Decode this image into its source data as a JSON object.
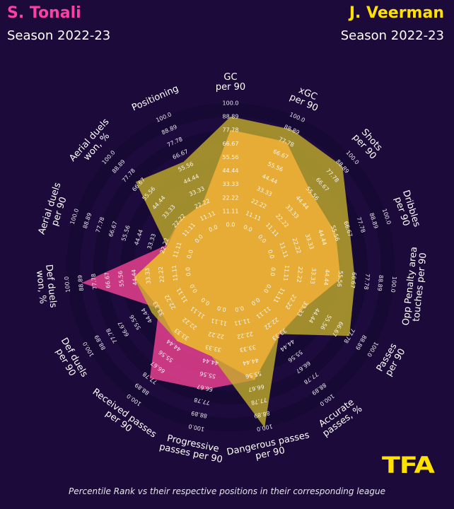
{
  "players": [
    {
      "name": "S. Tonali",
      "season": "Season 2022-23",
      "color": "#ff3fa4"
    },
    {
      "name": "J. Veerman",
      "season": "Season 2022-23",
      "color": "#ffe100"
    }
  ],
  "logo": {
    "text": "TFA",
    "color": "#ffe100"
  },
  "footnote": "Percentile Rank vs their respective positions in their corresponding league",
  "chart_data": {
    "type": "radar",
    "categories": [
      "GC\nper 90",
      "xGC\nper 90",
      "Shots\nper 90",
      "Dribbles\nper 90",
      "Opp Penalty area\ntouches per 90",
      "Passes\nper 90",
      "Accurate\npasses, %",
      "Dangerous passes\nper 90",
      "Progressive\npasses per 90",
      "Received passes\nper 90",
      "Def duels\nper 90",
      "Def duels\nwon, %",
      "Aerial duels\nper 90",
      "Aerial duels\nwon, %",
      "Positioning"
    ],
    "rings": [
      "0.0",
      "11.11",
      "22.22",
      "33.33",
      "44.44",
      "55.56",
      "66.67",
      "77.78",
      "88.89",
      "100.0"
    ],
    "rlim": [
      0,
      100
    ],
    "series": [
      {
        "name": "S. Tonali",
        "color": "#e8418e",
        "values": [
          78,
          78,
          55,
          56,
          56,
          34,
          34,
          60,
          68,
          78,
          33,
          88,
          22,
          22,
          22
        ]
      },
      {
        "name": "J. Veerman",
        "color": "#c7b12a",
        "values": [
          89,
          89,
          89,
          68,
          68,
          78,
          33,
          100,
          40,
          40,
          40,
          45,
          20,
          70,
          60
        ]
      }
    ]
  }
}
